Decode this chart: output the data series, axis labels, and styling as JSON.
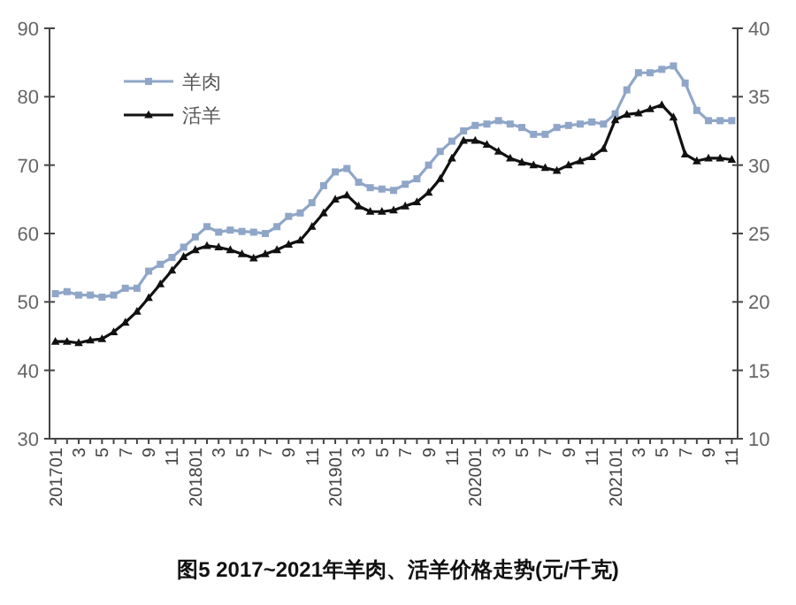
{
  "chart_data": {
    "type": "line",
    "categories": [
      "201701",
      null,
      "3",
      null,
      "5",
      null,
      "7",
      null,
      "9",
      null,
      "11",
      null,
      "201801",
      null,
      "3",
      null,
      "5",
      null,
      "7",
      null,
      "9",
      null,
      "11",
      null,
      "201901",
      null,
      "3",
      null,
      "5",
      null,
      "7",
      null,
      "9",
      null,
      "11",
      null,
      "202001",
      null,
      "3",
      null,
      "5",
      null,
      "7",
      null,
      "9",
      null,
      "11",
      null,
      "202101",
      null,
      "3",
      null,
      "5",
      null,
      "7",
      null,
      "9",
      null,
      "11"
    ],
    "series": [
      {
        "name": "羊肉",
        "color": "#8fa6c8",
        "marker": "square",
        "values": [
          51.2,
          51.5,
          51,
          51,
          50.7,
          51,
          52,
          52,
          54.5,
          55.5,
          56.5,
          58,
          59.5,
          61,
          60.2,
          60.5,
          60.3,
          60.2,
          60,
          61,
          62.5,
          63,
          64.5,
          67,
          69,
          69.5,
          67.5,
          66.7,
          66.5,
          66.3,
          67.2,
          68,
          70,
          72,
          73.5,
          75,
          75.8,
          76,
          76.5,
          76,
          75.5,
          74.5,
          74.5,
          75.5,
          75.8,
          76,
          76.3,
          76,
          77.5,
          81,
          83.5,
          83.5,
          84,
          84.5,
          82,
          78,
          76.5,
          76.5,
          76.5
        ]
      },
      {
        "name": "活羊",
        "color": "#111111",
        "marker": "triangle",
        "axis": "y2",
        "values": [
          17.1,
          17.1,
          17,
          17.2,
          17.3,
          17.8,
          18.5,
          19.3,
          20.3,
          21.3,
          22.3,
          23.3,
          23.8,
          24.1,
          24,
          23.8,
          23.5,
          23.2,
          23.5,
          23.8,
          24.2,
          24.5,
          25.5,
          26.5,
          27.5,
          27.8,
          27,
          26.6,
          26.6,
          26.7,
          27,
          27.3,
          28,
          29,
          30.5,
          31.8,
          31.8,
          31.5,
          31,
          30.5,
          30.2,
          30,
          29.8,
          29.6,
          30,
          30.3,
          30.6,
          31.2,
          33.3,
          33.7,
          33.8,
          34.1,
          34.4,
          33.5,
          30.8,
          30.3,
          30.5,
          30.5,
          30.4
        ]
      }
    ],
    "ylim": [
      30,
      90
    ],
    "yticks": [
      30,
      40,
      50,
      60,
      70,
      80,
      90
    ],
    "y2lim": [
      10,
      40
    ],
    "y2ticks": [
      10,
      15,
      20,
      25,
      30,
      35,
      40
    ],
    "legend": "top left",
    "grid": false,
    "annotations": [
      "图5 2017~2021年羊肉、活羊价格走势(元/千克)"
    ]
  }
}
